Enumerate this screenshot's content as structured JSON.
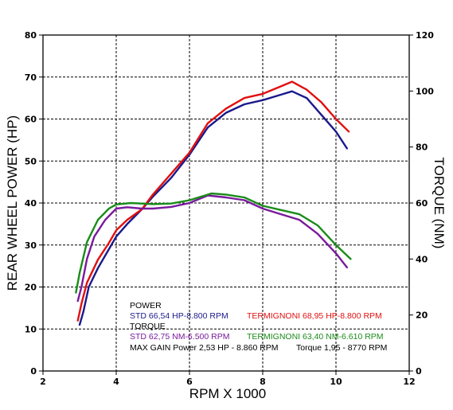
{
  "chart_data": {
    "type": "line",
    "xlabel": "RPM X 1000",
    "ylabel_left": "REAR WHEEL POWER (HP)",
    "ylabel_right": "TORQUE (NM)",
    "xlim": [
      2,
      12
    ],
    "ylim_left": [
      0,
      80
    ],
    "ylim_right": [
      0,
      120
    ],
    "x_ticks": [
      "2",
      "4",
      "6",
      "8",
      "10",
      "12"
    ],
    "y_left_ticks": [
      "0",
      "10",
      "20",
      "30",
      "40",
      "50",
      "60",
      "70",
      "80"
    ],
    "y_right_ticks": [
      "0",
      "20",
      "40",
      "60",
      "80",
      "100",
      "120"
    ],
    "grid": true,
    "series": [
      {
        "name": "STD power",
        "axis": "left",
        "color": "#1a1a8c",
        "points": [
          [
            3.0,
            11
          ],
          [
            3.1,
            14
          ],
          [
            3.25,
            20
          ],
          [
            3.5,
            24.5
          ],
          [
            3.8,
            29
          ],
          [
            4.0,
            32
          ],
          [
            4.3,
            35
          ],
          [
            4.7,
            38.5
          ],
          [
            5.0,
            41.5
          ],
          [
            5.5,
            46
          ],
          [
            6.0,
            51.5
          ],
          [
            6.5,
            58
          ],
          [
            7.0,
            61.5
          ],
          [
            7.5,
            63.5
          ],
          [
            8.0,
            64.5
          ],
          [
            8.5,
            65.8
          ],
          [
            8.8,
            66.6
          ],
          [
            9.2,
            65
          ],
          [
            9.6,
            61
          ],
          [
            10.0,
            57
          ],
          [
            10.3,
            53
          ]
        ]
      },
      {
        "name": "TERMIGNONI power",
        "axis": "left",
        "color": "#e01010",
        "points": [
          [
            2.95,
            12
          ],
          [
            3.05,
            16
          ],
          [
            3.2,
            21
          ],
          [
            3.5,
            26.5
          ],
          [
            3.8,
            30.5
          ],
          [
            4.0,
            33.5
          ],
          [
            4.3,
            36
          ],
          [
            4.7,
            38.5
          ],
          [
            5.0,
            42
          ],
          [
            5.5,
            47
          ],
          [
            6.0,
            52
          ],
          [
            6.5,
            59
          ],
          [
            7.0,
            62.5
          ],
          [
            7.5,
            65
          ],
          [
            8.0,
            66
          ],
          [
            8.5,
            67.8
          ],
          [
            8.8,
            68.9
          ],
          [
            9.2,
            67
          ],
          [
            9.6,
            64
          ],
          [
            10.0,
            60
          ],
          [
            10.35,
            57
          ]
        ]
      },
      {
        "name": "STD torque",
        "axis": "right",
        "color": "#7a1a9c",
        "points": [
          [
            2.95,
            25
          ],
          [
            3.05,
            30
          ],
          [
            3.2,
            40
          ],
          [
            3.4,
            48
          ],
          [
            3.7,
            54
          ],
          [
            4.0,
            58
          ],
          [
            4.3,
            58.5
          ],
          [
            4.7,
            58
          ],
          [
            5.0,
            58
          ],
          [
            5.5,
            58.6
          ],
          [
            6.0,
            60
          ],
          [
            6.5,
            62.7
          ],
          [
            7.0,
            62
          ],
          [
            7.5,
            61
          ],
          [
            8.0,
            58
          ],
          [
            8.5,
            56
          ],
          [
            9.0,
            54
          ],
          [
            9.5,
            49
          ],
          [
            10.0,
            42
          ],
          [
            10.3,
            37
          ]
        ]
      },
      {
        "name": "TERMIGNONI torque",
        "axis": "right",
        "color": "#1a8c1a",
        "points": [
          [
            2.9,
            28
          ],
          [
            3.0,
            35
          ],
          [
            3.2,
            46
          ],
          [
            3.5,
            54
          ],
          [
            3.8,
            58
          ],
          [
            4.0,
            59.5
          ],
          [
            4.4,
            60
          ],
          [
            5.0,
            59.6
          ],
          [
            5.5,
            59.8
          ],
          [
            6.0,
            61
          ],
          [
            6.6,
            63.4
          ],
          [
            7.0,
            63
          ],
          [
            7.5,
            62
          ],
          [
            8.0,
            59
          ],
          [
            8.5,
            57.5
          ],
          [
            9.0,
            56
          ],
          [
            9.5,
            52
          ],
          [
            10.0,
            45
          ],
          [
            10.4,
            40
          ]
        ]
      }
    ],
    "annotations": {
      "power_heading": "POWER",
      "std_power": "STD 66,54 HP-8.800 RPM",
      "term_power": "TERMIGNONI 68,95 HP-8.800 RPM",
      "torque_heading": "TORQUE",
      "std_torque": "STD 62,75 NM-6.500 RPM",
      "term_torque": "TERMIGNONI 63,40 NM-6.610 RPM",
      "max_gain": "MAX GAIN Power 2,53 HP - 8.860 RPM",
      "max_gain_torque": "Torque 1,95 - 8770 RPM"
    },
    "colors": {
      "std_power": "#1a1a8c",
      "term_power": "#e01010",
      "std_torque": "#7a1a9c",
      "term_torque": "#1a8c1a",
      "heading": "#000000"
    }
  }
}
